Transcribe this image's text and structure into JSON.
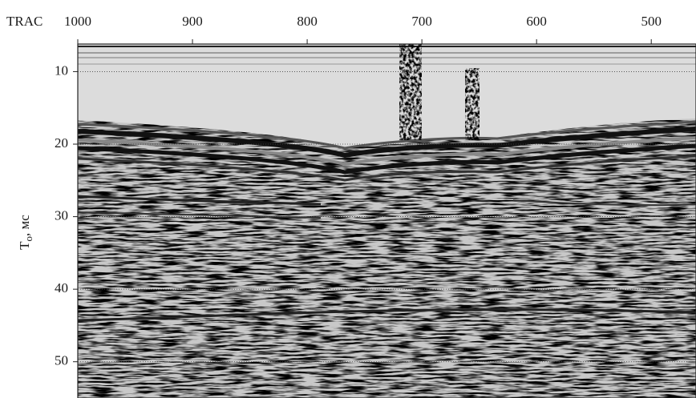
{
  "chart_data": {
    "type": "image",
    "x_label": "TRAC",
    "y_label": {
      "main": "T",
      "sub": "o",
      "rest": ", мс"
    },
    "xlim": [
      1000,
      461
    ],
    "xticks": [
      1000,
      900,
      800,
      700,
      600,
      500
    ],
    "ylim": [
      6.2,
      55
    ],
    "yticks": [
      10,
      20,
      30,
      40,
      50
    ],
    "grid": true
  }
}
